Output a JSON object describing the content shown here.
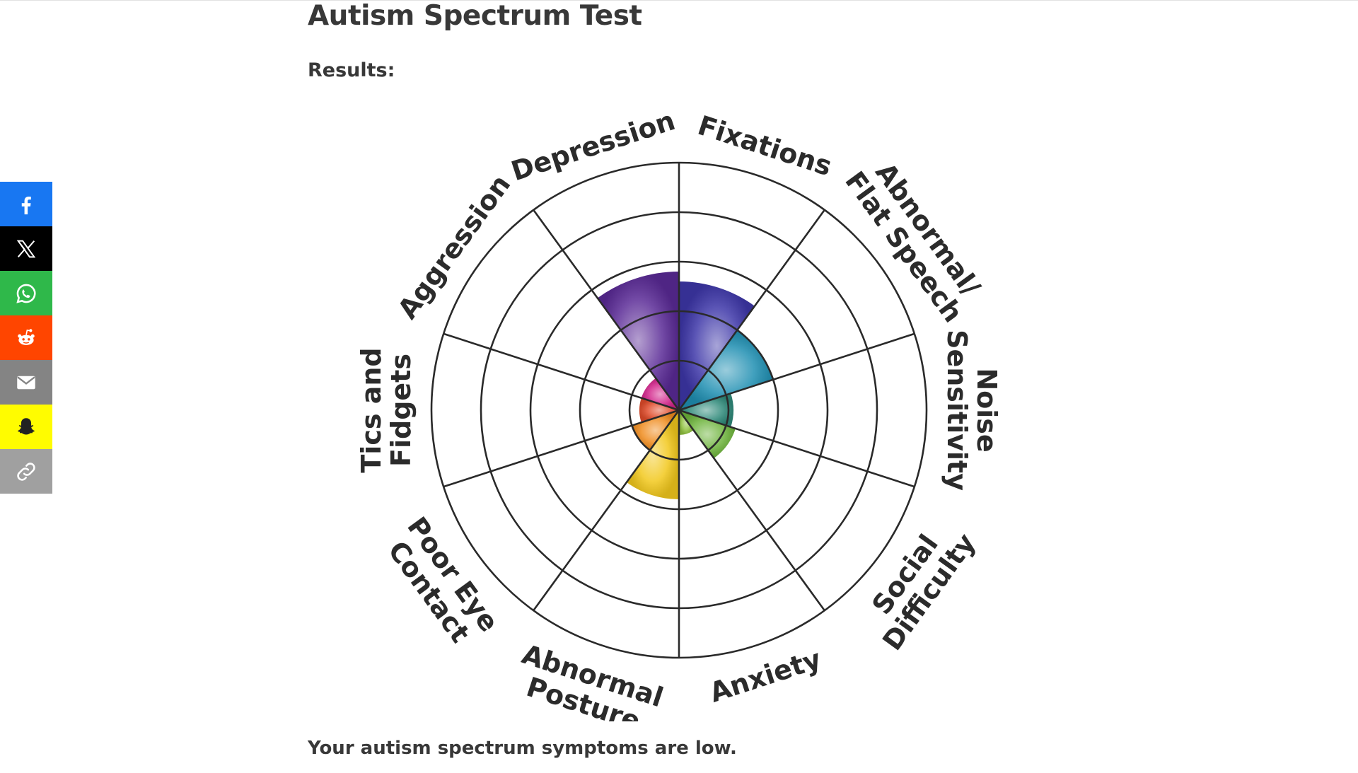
{
  "page": {
    "title": "Autism Spectrum Test",
    "results_label": "Results:",
    "summary": "Your autism spectrum symptoms are low."
  },
  "share": [
    {
      "name": "facebook",
      "icon": "facebook-icon",
      "color": "#1877f2"
    },
    {
      "name": "x",
      "icon": "x-icon",
      "color": "#000000"
    },
    {
      "name": "whatsapp",
      "icon": "whatsapp-icon",
      "color": "#25d366"
    },
    {
      "name": "reddit",
      "icon": "reddit-icon",
      "color": "#ff4500"
    },
    {
      "name": "email",
      "icon": "email-icon",
      "color": "#848484"
    },
    {
      "name": "snapchat",
      "icon": "snapchat-icon",
      "color": "#fffc00"
    },
    {
      "name": "copy-link",
      "icon": "link-icon",
      "color": "#a0a0a0"
    }
  ],
  "chart_data": {
    "type": "polar-area",
    "scale_max": 5,
    "rings": 5,
    "grid": true,
    "categories": [
      {
        "label": [
          "Fixations"
        ],
        "value": 2.6,
        "color": "#3d36a8"
      },
      {
        "label": [
          "Abnormal/",
          "Flat Speech"
        ],
        "value": 2.0,
        "color": "#1f8fb2"
      },
      {
        "label": [
          "Noise",
          "Sensitivity"
        ],
        "value": 1.1,
        "color": "#2f8a7a"
      },
      {
        "label": [
          "Social",
          "Difficulty"
        ],
        "value": 1.2,
        "color": "#6cb33a"
      },
      {
        "label": [
          "Anxiety"
        ],
        "value": 0.5,
        "color": "#8fc13e"
      },
      {
        "label": [
          "Abnormal",
          "Posture"
        ],
        "value": 1.8,
        "color": "#f2c81c"
      },
      {
        "label": [
          "Poor Eye",
          "Contact"
        ],
        "value": 1.0,
        "color": "#ef8b1d"
      },
      {
        "label": [
          "Tics and",
          "Fidgets"
        ],
        "value": 0.8,
        "color": "#e04b2a"
      },
      {
        "label": [
          "Aggression"
        ],
        "value": 0.8,
        "color": "#d2238a"
      },
      {
        "label": [
          "Depression"
        ],
        "value": 2.8,
        "color": "#5a2a96"
      }
    ]
  }
}
